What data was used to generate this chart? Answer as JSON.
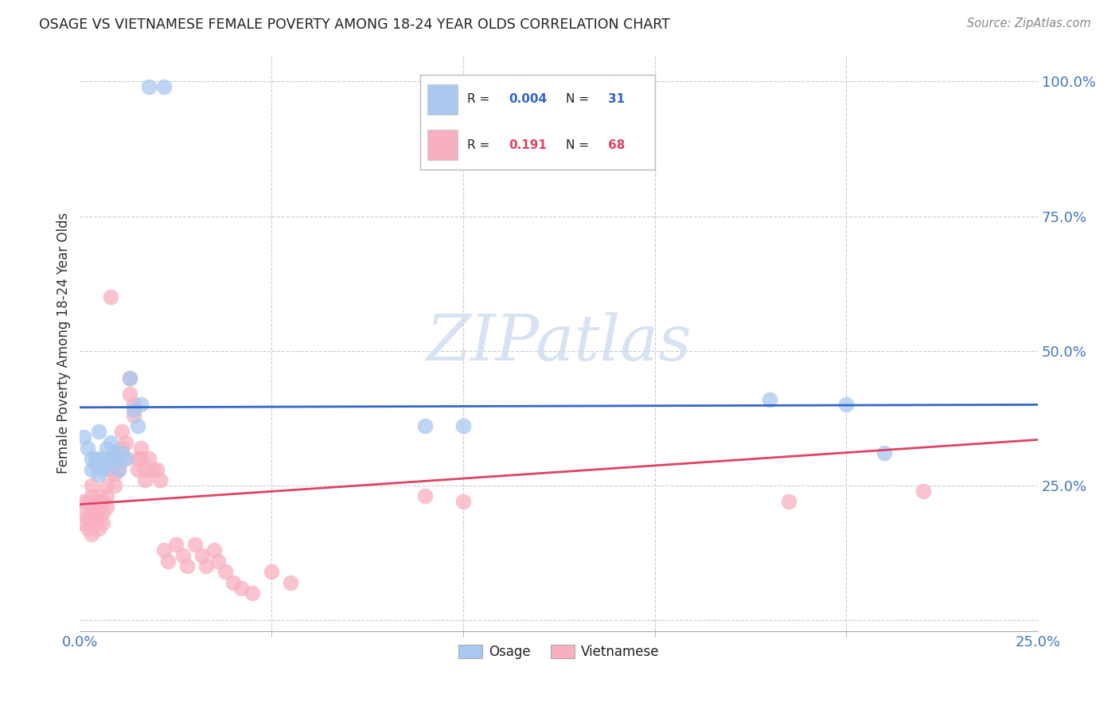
{
  "title": "OSAGE VS VIETNAMESE FEMALE POVERTY AMONG 18-24 YEAR OLDS CORRELATION CHART",
  "source": "Source: ZipAtlas.com",
  "ylabel": "Female Poverty Among 18-24 Year Olds",
  "xlim": [
    0.0,
    0.25
  ],
  "ylim": [
    -0.02,
    1.05
  ],
  "legend_R_osage": "0.004",
  "legend_N_osage": "31",
  "legend_R_viet": "0.191",
  "legend_N_viet": "68",
  "osage_color": "#a8c8f0",
  "vietnamese_color": "#f8b0c0",
  "osage_line_color": "#3366cc",
  "vietnamese_line_color": "#dd4466",
  "watermark_color": "#d0dff0",
  "osage_x": [
    0.018,
    0.022,
    0.001,
    0.002,
    0.003,
    0.003,
    0.004,
    0.004,
    0.005,
    0.005,
    0.006,
    0.006,
    0.007,
    0.007,
    0.008,
    0.008,
    0.009,
    0.009,
    0.01,
    0.01,
    0.011,
    0.012,
    0.013,
    0.014,
    0.015,
    0.016,
    0.09,
    0.1,
    0.18,
    0.2,
    0.21
  ],
  "osage_y": [
    0.99,
    0.99,
    0.34,
    0.32,
    0.3,
    0.28,
    0.3,
    0.29,
    0.27,
    0.35,
    0.28,
    0.3,
    0.32,
    0.29,
    0.3,
    0.33,
    0.31,
    0.3,
    0.3,
    0.28,
    0.31,
    0.3,
    0.45,
    0.39,
    0.36,
    0.4,
    0.36,
    0.36,
    0.41,
    0.4,
    0.31
  ],
  "vietnamese_x": [
    0.001,
    0.001,
    0.001,
    0.002,
    0.002,
    0.002,
    0.003,
    0.003,
    0.003,
    0.003,
    0.003,
    0.004,
    0.004,
    0.004,
    0.005,
    0.005,
    0.005,
    0.005,
    0.006,
    0.006,
    0.006,
    0.007,
    0.007,
    0.007,
    0.008,
    0.008,
    0.009,
    0.009,
    0.01,
    0.01,
    0.011,
    0.011,
    0.012,
    0.012,
    0.013,
    0.013,
    0.014,
    0.014,
    0.015,
    0.015,
    0.016,
    0.016,
    0.017,
    0.017,
    0.018,
    0.019,
    0.02,
    0.021,
    0.022,
    0.023,
    0.025,
    0.027,
    0.028,
    0.03,
    0.032,
    0.033,
    0.035,
    0.036,
    0.038,
    0.04,
    0.042,
    0.045,
    0.05,
    0.055,
    0.09,
    0.1,
    0.185,
    0.22
  ],
  "vietnamese_y": [
    0.22,
    0.2,
    0.18,
    0.22,
    0.19,
    0.17,
    0.25,
    0.23,
    0.2,
    0.18,
    0.16,
    0.21,
    0.19,
    0.22,
    0.23,
    0.21,
    0.19,
    0.17,
    0.22,
    0.2,
    0.18,
    0.25,
    0.23,
    0.21,
    0.28,
    0.6,
    0.27,
    0.25,
    0.3,
    0.28,
    0.35,
    0.32,
    0.33,
    0.3,
    0.45,
    0.42,
    0.4,
    0.38,
    0.3,
    0.28,
    0.32,
    0.3,
    0.28,
    0.26,
    0.3,
    0.28,
    0.28,
    0.26,
    0.13,
    0.11,
    0.14,
    0.12,
    0.1,
    0.14,
    0.12,
    0.1,
    0.13,
    0.11,
    0.09,
    0.07,
    0.06,
    0.05,
    0.09,
    0.07,
    0.23,
    0.22,
    0.22,
    0.24
  ],
  "osage_trend_y0": 0.395,
  "osage_trend_y1": 0.4,
  "viet_trend_y0": 0.215,
  "viet_trend_y1": 0.335
}
